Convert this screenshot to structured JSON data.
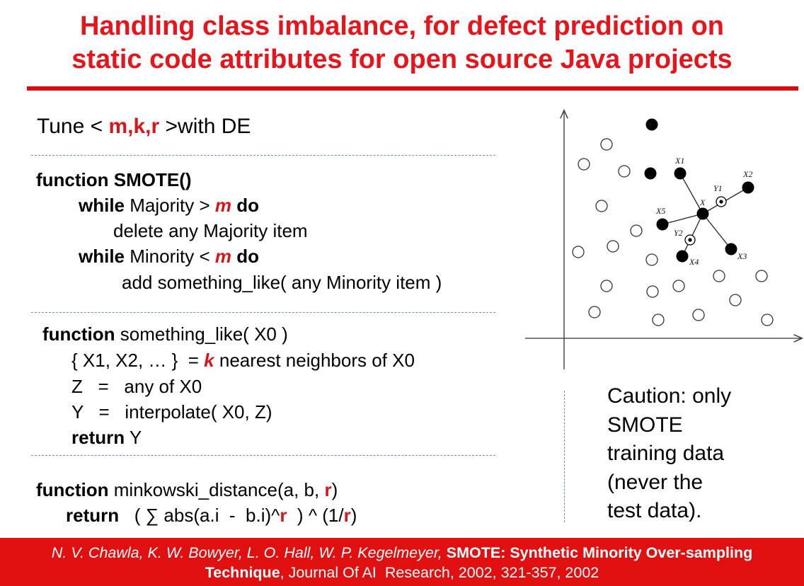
{
  "slide": {
    "title_line1": "Handling class imbalance, for defect prediction on",
    "title_line2": "static code attributes for open source Java projects"
  },
  "tune": {
    "prefix": "Tune < ",
    "params": "m,k,r",
    "suffix": " >with DE"
  },
  "smote": {
    "kw_function": "function",
    "name": " SMOTE()",
    "kw_while": "while",
    "maj_text": " Majority > ",
    "m": "m",
    "kw_do": " do",
    "delete_text": "delete any Majority item",
    "min_text": " Minority < ",
    "add_text": "add something_like( any Minority item )"
  },
  "something_like": {
    "kw_function": "function",
    "sig": " something_like( X0 )",
    "neighbors_prefix": "{ X1, X2, … }  = ",
    "k": "k",
    "neighbors_suffix": " nearest neighbors of X0",
    "z_line": "Z   =   any of X0",
    "y_line": "Y   =   interpolate( X0, Z)",
    "kw_return": "return",
    "ret_val": " Y"
  },
  "minkowski": {
    "kw_function": "function",
    "sig_prefix": " minkowski_distance(a, b, ",
    "r": "r",
    "sig_suffix": ")",
    "kw_return": "return",
    "expr_a": "   ( ∑ abs(a.i  -  b.i)^",
    "expr_b": "  ) ^ (1/",
    "expr_c": ")"
  },
  "diagram_labels": {
    "x1": "X1",
    "x2": "X2",
    "x3": "X3",
    "x4": "X4",
    "x5": "X5",
    "x": "X",
    "y1": "Y1",
    "y2": "Y2"
  },
  "caution": {
    "line1": "Caution: only",
    "line2": "SMOTE",
    "line3": "training data",
    "line4": "(never the",
    "line5": "test data)."
  },
  "citation": {
    "authors": "N. V. Chawla, K. W. Bowyer, L. O. Hall, W. P. Kegelmeyer, ",
    "title_a": "SMOTE: Synthetic Minority Over-sampling",
    "title_b": "Technique",
    "venue": ", Journal Of AI  Research, 2002, 321-357, 2002"
  },
  "colors": {
    "accent": "#e8141b",
    "footer": "#e01010",
    "rule": "#6f8fb8"
  }
}
